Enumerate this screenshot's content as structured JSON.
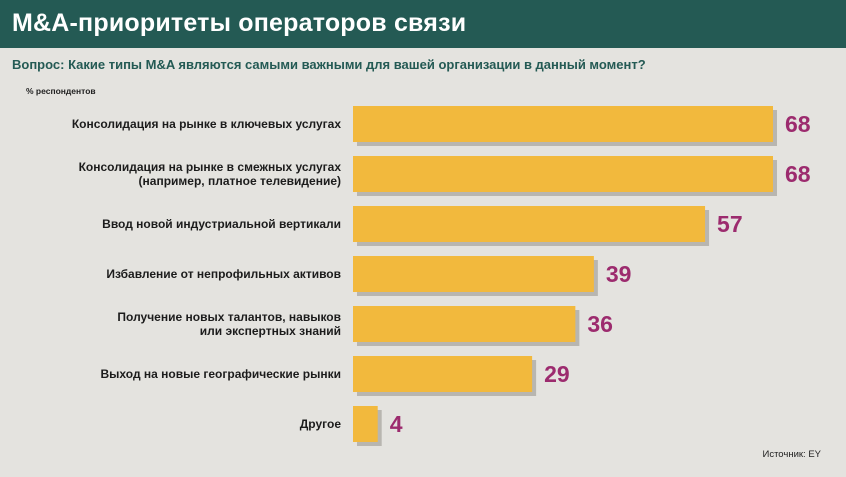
{
  "header": {
    "title": "M&A-приоритеты операторов связи",
    "question": "Вопрос: Какие типы M&A являются самыми важными для вашей организации в данный момент?",
    "unit_note": "% респондентов"
  },
  "footer": {
    "source": "Источник: EY"
  },
  "colors": {
    "header_bg": "#245a54",
    "background": "#e4e3df",
    "bar": "#f2b93d",
    "bar_shadow": "#b8b6b0",
    "value_text": "#9c2b6e"
  },
  "chart_data": {
    "type": "bar",
    "orientation": "horizontal",
    "categories": [
      [
        "Консолидация на рынке в ключевых услугах"
      ],
      [
        "Консолидация на рынке в смежных услугах",
        "(например, платное телевидение)"
      ],
      [
        "Ввод новой индустриальной вертикали"
      ],
      [
        "Избавление от непрофильных активов"
      ],
      [
        "Получение новых талантов, навыков",
        "или экспертных знаний"
      ],
      [
        "Выход на новые географические рынки"
      ],
      [
        "Другое"
      ]
    ],
    "values": [
      68,
      68,
      57,
      39,
      36,
      29,
      4
    ],
    "xlim": [
      0,
      70
    ],
    "grid": false,
    "legend": false
  }
}
